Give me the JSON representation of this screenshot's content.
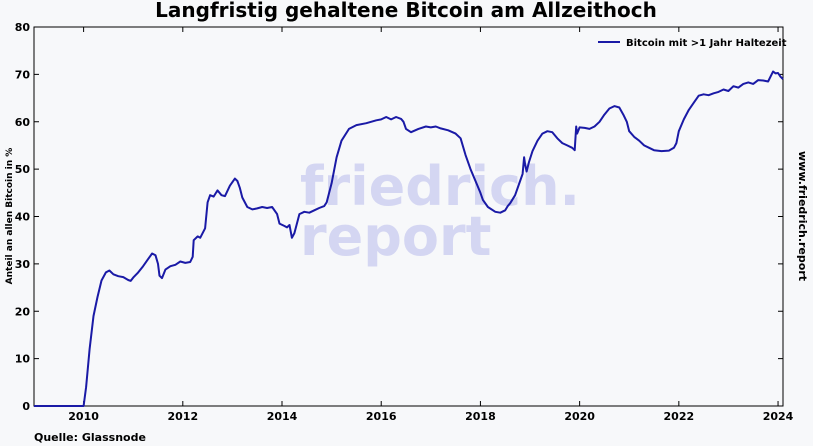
{
  "chart_data": {
    "type": "line",
    "title": "Langfristig gehaltene Bitcoin am Allzeithoch",
    "xlabel": "",
    "ylabel": "Anteil an allen Bitcoin in %",
    "xlim": [
      2009.0,
      2024.1
    ],
    "ylim": [
      0,
      80
    ],
    "x_ticks": [
      2010,
      2012,
      2014,
      2016,
      2018,
      2020,
      2022,
      2024
    ],
    "y_ticks": [
      0,
      10,
      20,
      30,
      40,
      50,
      60,
      70,
      80
    ],
    "grid": false,
    "legend_position": "top-right",
    "series": [
      {
        "name": "Bitcoin mit >1 Jahr Haltezeit",
        "color": "#1a1aa6",
        "points": [
          [
            2009.0,
            0
          ],
          [
            2010.0,
            0
          ],
          [
            2010.05,
            4
          ],
          [
            2010.12,
            12
          ],
          [
            2010.2,
            19
          ],
          [
            2010.28,
            23
          ],
          [
            2010.36,
            26.5
          ],
          [
            2010.45,
            28.2
          ],
          [
            2010.52,
            28.6
          ],
          [
            2010.6,
            27.8
          ],
          [
            2010.7,
            27.4
          ],
          [
            2010.8,
            27.2
          ],
          [
            2010.9,
            26.6
          ],
          [
            2010.95,
            26.4
          ],
          [
            2011.0,
            27.1
          ],
          [
            2011.1,
            28.2
          ],
          [
            2011.2,
            29.5
          ],
          [
            2011.3,
            31.0
          ],
          [
            2011.38,
            32.2
          ],
          [
            2011.45,
            31.8
          ],
          [
            2011.5,
            30.0
          ],
          [
            2011.53,
            27.5
          ],
          [
            2011.58,
            27.0
          ],
          [
            2011.65,
            28.8
          ],
          [
            2011.75,
            29.5
          ],
          [
            2011.85,
            29.8
          ],
          [
            2011.95,
            30.5
          ],
          [
            2012.05,
            30.2
          ],
          [
            2012.15,
            30.4
          ],
          [
            2012.2,
            31.5
          ],
          [
            2012.22,
            35.0
          ],
          [
            2012.3,
            35.8
          ],
          [
            2012.35,
            35.5
          ],
          [
            2012.45,
            37.5
          ],
          [
            2012.5,
            43.0
          ],
          [
            2012.55,
            44.5
          ],
          [
            2012.62,
            44.2
          ],
          [
            2012.7,
            45.5
          ],
          [
            2012.78,
            44.5
          ],
          [
            2012.85,
            44.3
          ],
          [
            2012.95,
            46.5
          ],
          [
            2013.05,
            48.0
          ],
          [
            2013.1,
            47.5
          ],
          [
            2013.15,
            46.0
          ],
          [
            2013.2,
            44.0
          ],
          [
            2013.3,
            42.0
          ],
          [
            2013.4,
            41.5
          ],
          [
            2013.5,
            41.7
          ],
          [
            2013.6,
            42.0
          ],
          [
            2013.7,
            41.8
          ],
          [
            2013.8,
            42.0
          ],
          [
            2013.9,
            40.5
          ],
          [
            2013.95,
            38.5
          ],
          [
            2014.05,
            38.0
          ],
          [
            2014.1,
            37.7
          ],
          [
            2014.15,
            38.2
          ],
          [
            2014.2,
            35.5
          ],
          [
            2014.25,
            36.5
          ],
          [
            2014.3,
            38.5
          ],
          [
            2014.35,
            40.5
          ],
          [
            2014.45,
            41.0
          ],
          [
            2014.55,
            40.8
          ],
          [
            2014.65,
            41.3
          ],
          [
            2014.75,
            41.8
          ],
          [
            2014.85,
            42.2
          ],
          [
            2014.9,
            43.0
          ],
          [
            2015.0,
            47.0
          ],
          [
            2015.1,
            52.5
          ],
          [
            2015.2,
            56.0
          ],
          [
            2015.35,
            58.5
          ],
          [
            2015.5,
            59.3
          ],
          [
            2015.7,
            59.7
          ],
          [
            2015.9,
            60.3
          ],
          [
            2016.0,
            60.5
          ],
          [
            2016.1,
            61.0
          ],
          [
            2016.2,
            60.5
          ],
          [
            2016.3,
            61.0
          ],
          [
            2016.4,
            60.6
          ],
          [
            2016.45,
            60.0
          ],
          [
            2016.5,
            58.5
          ],
          [
            2016.6,
            57.8
          ],
          [
            2016.75,
            58.5
          ],
          [
            2016.9,
            59.0
          ],
          [
            2017.0,
            58.8
          ],
          [
            2017.1,
            59.0
          ],
          [
            2017.2,
            58.6
          ],
          [
            2017.35,
            58.2
          ],
          [
            2017.5,
            57.5
          ],
          [
            2017.6,
            56.5
          ],
          [
            2017.7,
            53.0
          ],
          [
            2017.8,
            50.0
          ],
          [
            2017.9,
            47.5
          ],
          [
            2018.0,
            45.0
          ],
          [
            2018.05,
            43.5
          ],
          [
            2018.15,
            42.0
          ],
          [
            2018.3,
            41.0
          ],
          [
            2018.4,
            40.8
          ],
          [
            2018.5,
            41.3
          ],
          [
            2018.55,
            42.2
          ],
          [
            2018.6,
            42.8
          ],
          [
            2018.7,
            44.5
          ],
          [
            2018.8,
            47.5
          ],
          [
            2018.85,
            49.0
          ],
          [
            2018.88,
            52.5
          ],
          [
            2018.9,
            51.0
          ],
          [
            2018.93,
            49.5
          ],
          [
            2018.98,
            51.5
          ],
          [
            2019.05,
            53.8
          ],
          [
            2019.15,
            56.0
          ],
          [
            2019.25,
            57.5
          ],
          [
            2019.35,
            58.0
          ],
          [
            2019.45,
            57.8
          ],
          [
            2019.55,
            56.5
          ],
          [
            2019.65,
            55.5
          ],
          [
            2019.75,
            55.0
          ],
          [
            2019.85,
            54.5
          ],
          [
            2019.9,
            54.0
          ],
          [
            2019.93,
            59.0
          ],
          [
            2019.95,
            57.5
          ],
          [
            2020.0,
            58.8
          ],
          [
            2020.1,
            58.7
          ],
          [
            2020.2,
            58.5
          ],
          [
            2020.3,
            59.0
          ],
          [
            2020.4,
            60.0
          ],
          [
            2020.5,
            61.5
          ],
          [
            2020.6,
            62.8
          ],
          [
            2020.7,
            63.3
          ],
          [
            2020.8,
            63.0
          ],
          [
            2020.88,
            61.5
          ],
          [
            2020.95,
            60.0
          ],
          [
            2021.0,
            58.0
          ],
          [
            2021.1,
            56.8
          ],
          [
            2021.2,
            56.0
          ],
          [
            2021.3,
            55.0
          ],
          [
            2021.4,
            54.5
          ],
          [
            2021.5,
            54.0
          ],
          [
            2021.65,
            53.8
          ],
          [
            2021.8,
            53.9
          ],
          [
            2021.9,
            54.5
          ],
          [
            2021.95,
            55.5
          ],
          [
            2022.0,
            58.0
          ],
          [
            2022.1,
            60.5
          ],
          [
            2022.2,
            62.5
          ],
          [
            2022.3,
            64.0
          ],
          [
            2022.4,
            65.5
          ],
          [
            2022.5,
            65.8
          ],
          [
            2022.6,
            65.6
          ],
          [
            2022.7,
            66.0
          ],
          [
            2022.8,
            66.3
          ],
          [
            2022.9,
            66.8
          ],
          [
            2023.0,
            66.5
          ],
          [
            2023.1,
            67.5
          ],
          [
            2023.2,
            67.2
          ],
          [
            2023.3,
            68.0
          ],
          [
            2023.4,
            68.3
          ],
          [
            2023.5,
            68.0
          ],
          [
            2023.6,
            68.8
          ],
          [
            2023.7,
            68.7
          ],
          [
            2023.8,
            68.5
          ],
          [
            2023.87,
            70.0
          ],
          [
            2023.9,
            70.6
          ],
          [
            2023.95,
            70.2
          ],
          [
            2024.0,
            70.3
          ],
          [
            2024.05,
            69.5
          ],
          [
            2024.1,
            69.0
          ]
        ]
      }
    ]
  },
  "side_text": "www.friedrich.report",
  "source": "Quelle: Glassnode",
  "watermark": {
    "line1": "friedrich.",
    "line2": "report"
  },
  "colors": {
    "line": "#1a1aa6",
    "background": "#f7f8fa",
    "watermark": "#c9cbf0"
  }
}
